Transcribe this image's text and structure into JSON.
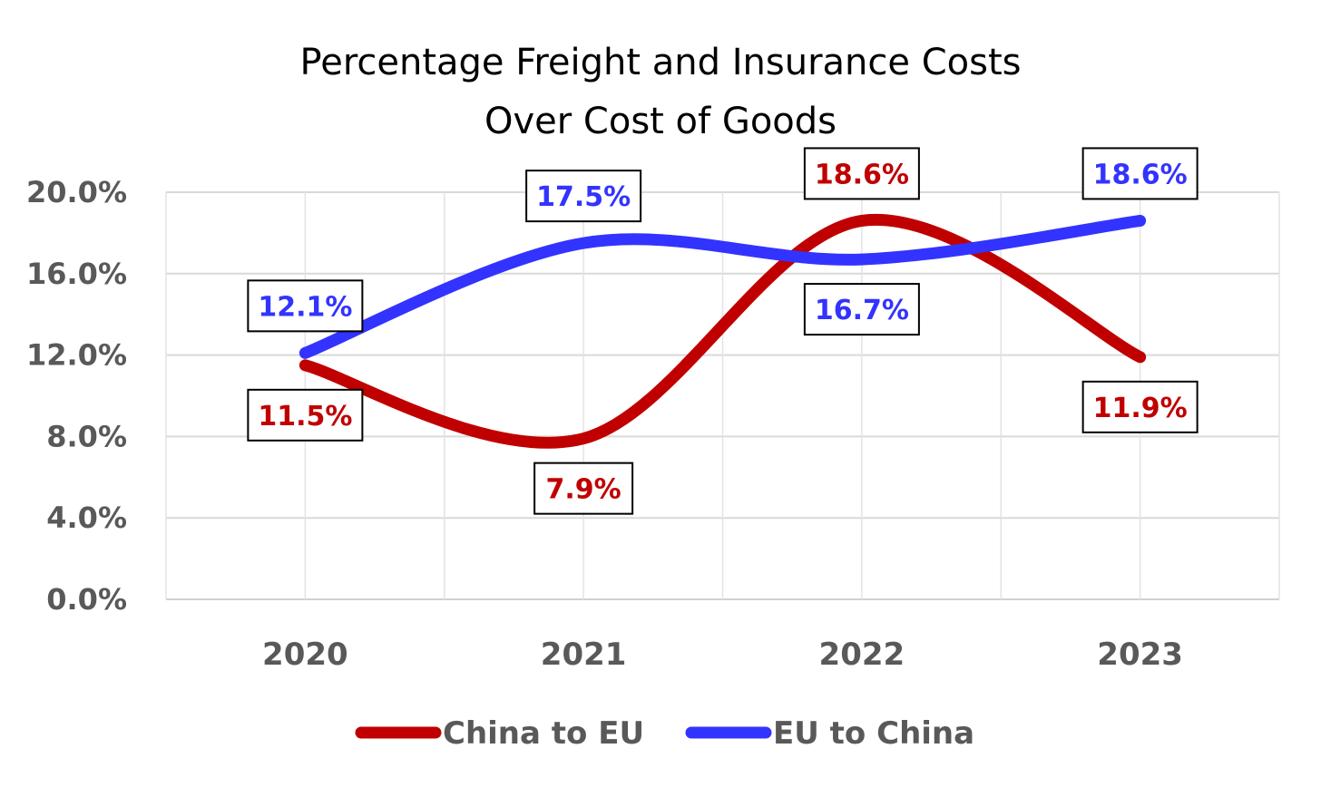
{
  "chart_data": {
    "type": "line",
    "title": [
      "Percentage Freight and Insurance Costs",
      "Over Cost of Goods"
    ],
    "categories": [
      "2020",
      "2021",
      "2022",
      "2023"
    ],
    "ylim": [
      0,
      20
    ],
    "yticks": [
      0,
      4,
      8,
      12,
      16,
      20
    ],
    "ytick_labels": [
      "0.0%",
      "4.0%",
      "8.0%",
      "12.0%",
      "16.0%",
      "20.0%"
    ],
    "grid": true,
    "smooth": true,
    "legend_position": "bottom",
    "series": [
      {
        "name": "China to EU",
        "color": "#C00000",
        "values": [
          11.5,
          7.9,
          18.6,
          11.9
        ],
        "labels": [
          "11.5%",
          "7.9%",
          "18.6%",
          "11.9%"
        ],
        "label_placement": [
          "below",
          "below",
          "above",
          "below"
        ]
      },
      {
        "name": "EU to China",
        "color": "#3333FF",
        "values": [
          12.1,
          17.5,
          16.7,
          18.6
        ],
        "labels": [
          "12.1%",
          "17.5%",
          "16.7%",
          "18.6%"
        ],
        "label_placement": [
          "above",
          "above",
          "below",
          "above"
        ]
      }
    ]
  }
}
